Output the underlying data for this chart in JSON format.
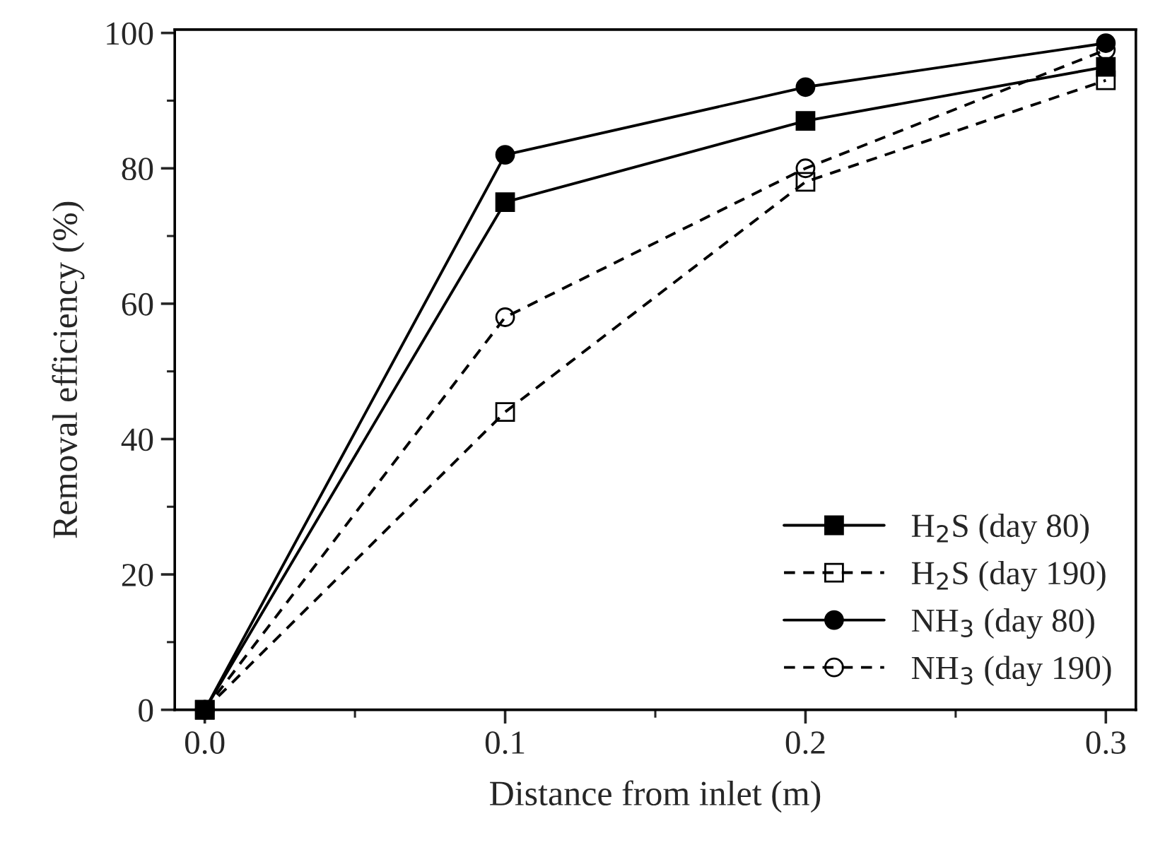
{
  "chart_data": {
    "type": "line",
    "xlabel": "Distance from inlet (m)",
    "ylabel": "Removal efficiency (%)",
    "x": [
      0.0,
      0.1,
      0.2,
      0.3
    ],
    "series": [
      {
        "name": "H$_{2}$S (day 80)",
        "color": "#000000",
        "values": [
          0,
          75,
          87,
          95
        ],
        "marker": "square",
        "line_style": "solid"
      },
      {
        "name": "H$_{2}$S (day 190)",
        "color": "#000000",
        "values": [
          0,
          44,
          78,
          93
        ],
        "marker": "square",
        "line_style": "dashed"
      },
      {
        "name": "NH$_{3}$ (day 80)",
        "color": "#000000",
        "values": [
          0,
          82,
          92,
          98.5
        ],
        "marker": "circle",
        "line_style": "solid"
      },
      {
        "name": "NH$_{3}$ (day 190)",
        "color": "#000000",
        "values": [
          0,
          58,
          80,
          97.5
        ],
        "marker": "circle",
        "line_style": "dashed"
      }
    ],
    "xlim": [
      -0.01,
      0.31
    ],
    "ylim": [
      0,
      100.5
    ],
    "xticks": [
      {
        "value": 0.0,
        "label": "0.0"
      },
      {
        "value": 0.05,
        "label": null
      },
      {
        "value": 0.1,
        "label": "0.1"
      },
      {
        "value": 0.15,
        "label": null
      },
      {
        "value": 0.2,
        "label": "0.2"
      },
      {
        "value": 0.25,
        "label": null
      },
      {
        "value": 0.3,
        "label": "0.3"
      }
    ],
    "yticks": [
      0,
      {
        "value": 10,
        "label": null
      },
      20,
      {
        "value": 30,
        "label": null
      },
      40,
      {
        "value": 50,
        "label": null
      },
      60,
      {
        "value": 70,
        "label": null
      },
      80,
      {
        "value": 90,
        "label": null
      },
      100
    ],
    "grid": false,
    "legend": "bottom right"
  }
}
